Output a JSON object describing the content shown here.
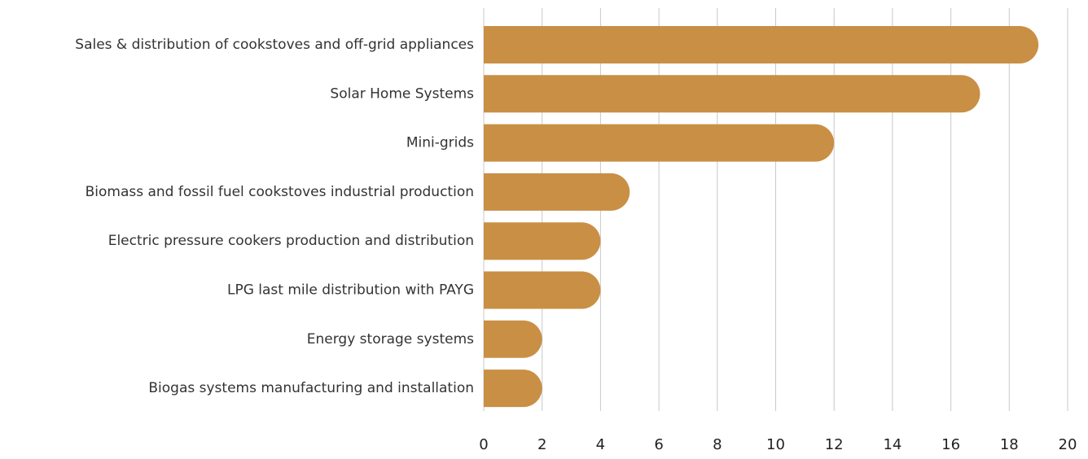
{
  "chart_data": {
    "type": "bar",
    "orientation": "horizontal",
    "categories": [
      "Sales & distribution of cookstoves and off-grid appliances",
      "Solar Home Systems",
      "Mini-grids",
      "Biomass and fossil fuel cookstoves industrial production",
      "Electric pressure cookers production and distribution",
      "LPG last mile distribution with PAYG",
      "Energy storage systems",
      "Biogas systems manufacturing and installation"
    ],
    "values": [
      19,
      17,
      12,
      5,
      4,
      4,
      2,
      2
    ],
    "color": "#c98f45",
    "xlim": [
      0,
      20
    ],
    "xticks": [
      0,
      2,
      4,
      6,
      8,
      10,
      12,
      14,
      16,
      18,
      20
    ],
    "grid": true
  }
}
